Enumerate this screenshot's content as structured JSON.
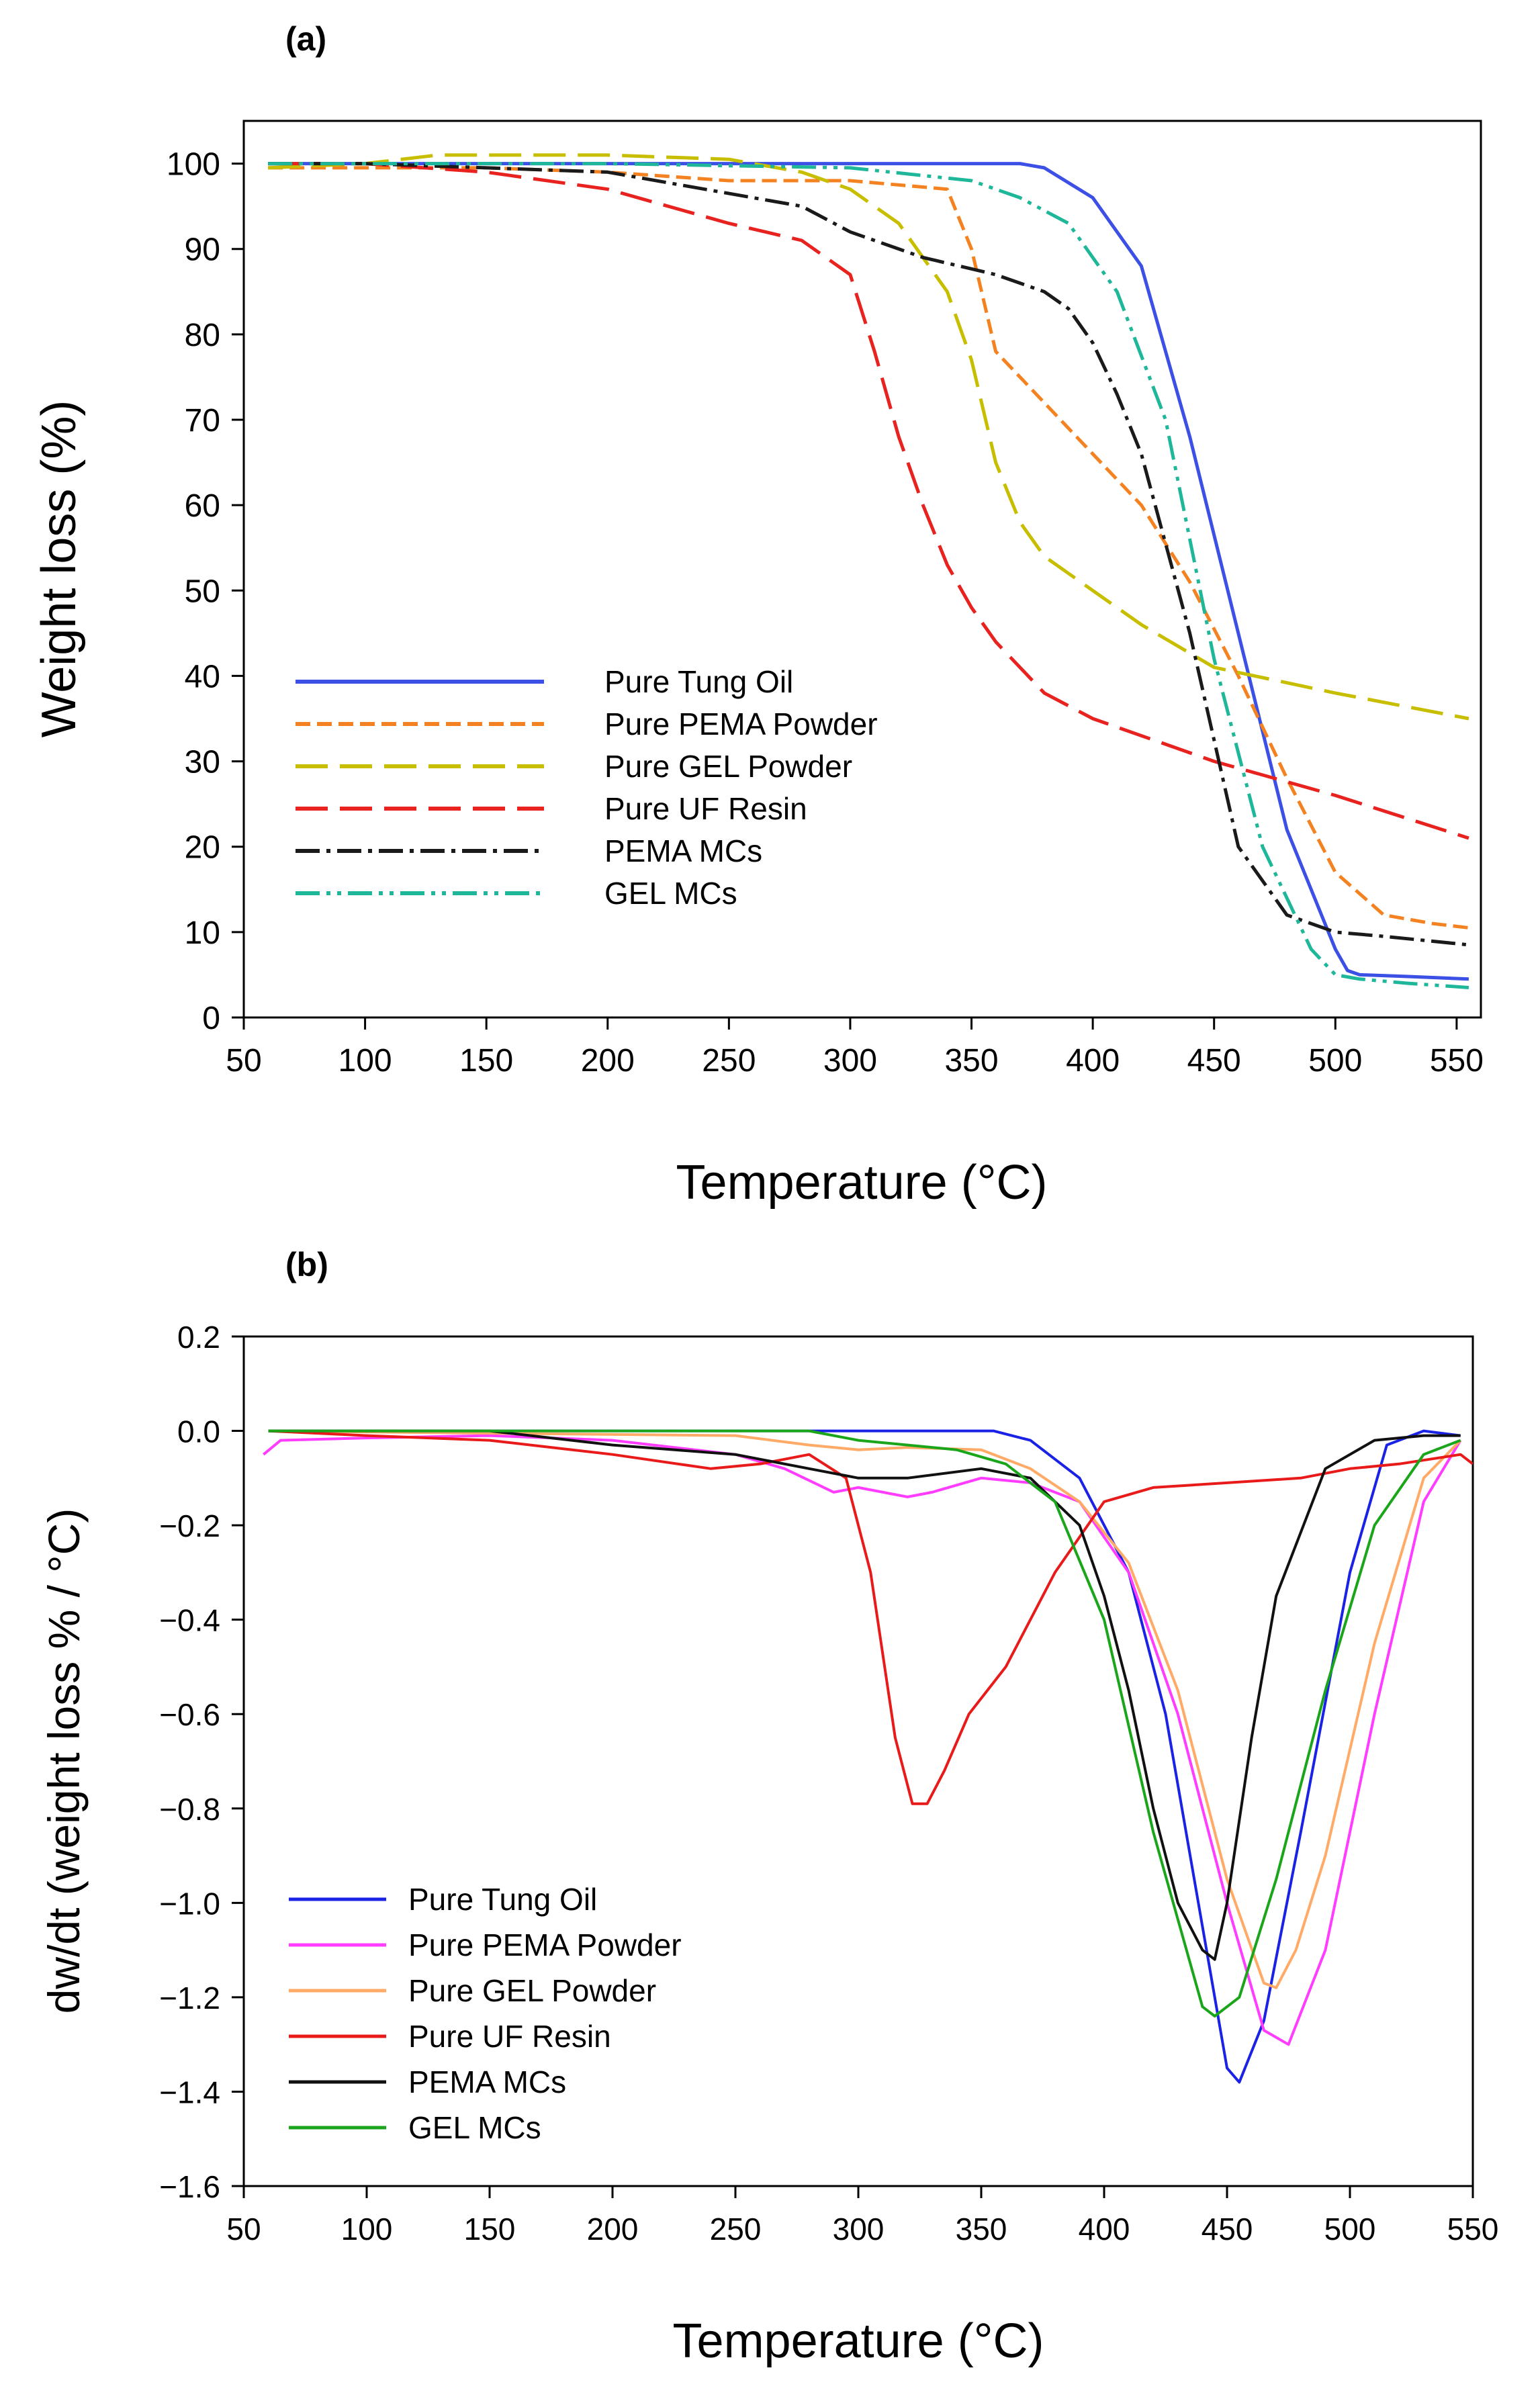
{
  "chart_data": [
    {
      "panel": "(a)",
      "type": "line",
      "title": "",
      "xlabel": "Temperature (°C)",
      "ylabel": "Weight loss (%)",
      "xlim": [
        50,
        560
      ],
      "ylim": [
        0,
        105
      ],
      "xticks": [
        50,
        100,
        150,
        200,
        250,
        300,
        350,
        400,
        450,
        500,
        550
      ],
      "yticks": [
        0,
        10,
        20,
        30,
        40,
        50,
        60,
        70,
        80,
        90,
        100
      ],
      "legend_position": "lower-left",
      "grid": false,
      "series": [
        {
          "name": "Pure Tung Oil",
          "color": "#3c50e6",
          "dash": "solid",
          "x": [
            60,
            100,
            200,
            300,
            370,
            380,
            400,
            420,
            440,
            460,
            480,
            500,
            505,
            510,
            530,
            555
          ],
          "y": [
            100,
            100,
            100,
            100,
            100,
            99.5,
            96,
            88,
            68,
            45,
            22,
            8,
            5.5,
            5,
            4.8,
            4.5
          ]
        },
        {
          "name": "Pure PEMA Powder",
          "color": "#f58220",
          "dash": "short",
          "x": [
            60,
            100,
            150,
            200,
            250,
            300,
            340,
            350,
            360,
            380,
            400,
            420,
            440,
            460,
            480,
            500,
            520,
            540,
            555
          ],
          "y": [
            99.5,
            99.5,
            99.5,
            99,
            98,
            98,
            97,
            90,
            78,
            72,
            66,
            60,
            51,
            40,
            28,
            17,
            12,
            11,
            10.5
          ]
        },
        {
          "name": "Pure GEL Powder",
          "color": "#c8be00",
          "dash": "long",
          "x": [
            60,
            100,
            130,
            200,
            250,
            280,
            300,
            320,
            340,
            350,
            360,
            370,
            380,
            400,
            420,
            450,
            500,
            555
          ],
          "y": [
            99.5,
            100,
            101,
            101,
            100.5,
            99,
            97,
            93,
            85,
            77,
            65,
            58,
            54,
            50,
            46,
            41,
            38,
            35
          ]
        },
        {
          "name": "Pure UF Resin",
          "color": "#e8221e",
          "dash": "long",
          "x": [
            60,
            100,
            150,
            200,
            250,
            280,
            300,
            310,
            320,
            330,
            340,
            350,
            360,
            380,
            400,
            450,
            500,
            555
          ],
          "y": [
            100,
            100,
            99,
            97,
            93,
            91,
            87,
            78,
            68,
            60,
            53,
            48,
            44,
            38,
            35,
            30,
            26,
            21
          ]
        },
        {
          "name": "PEMA MCs",
          "color": "#1a1a1a",
          "dash": "dashdot",
          "x": [
            60,
            100,
            150,
            200,
            250,
            280,
            300,
            330,
            360,
            380,
            390,
            400,
            410,
            420,
            440,
            460,
            480,
            500,
            520,
            555
          ],
          "y": [
            100,
            100,
            99.5,
            99,
            96.5,
            95,
            92,
            89,
            87,
            85,
            83,
            79,
            73,
            66,
            45,
            20,
            12,
            10,
            9.5,
            8.5
          ]
        },
        {
          "name": "GEL MCs",
          "color": "#1fb79a",
          "dash": "dashdotdot",
          "x": [
            60,
            100,
            200,
            300,
            350,
            370,
            390,
            410,
            430,
            450,
            470,
            490,
            500,
            510,
            530,
            555
          ],
          "y": [
            100,
            100,
            100,
            99.5,
            98,
            96,
            93,
            85,
            70,
            42,
            20,
            8,
            5,
            4.5,
            4,
            3.5
          ]
        }
      ]
    },
    {
      "panel": "(b)",
      "type": "line",
      "title": "",
      "xlabel": "Temperature (°C)",
      "ylabel": "dw/dt (weight loss % / °C)",
      "xlim": [
        50,
        550
      ],
      "ylim": [
        -1.6,
        0.2
      ],
      "xticks": [
        50,
        100,
        150,
        200,
        250,
        300,
        350,
        400,
        450,
        500,
        550
      ],
      "yticks": [
        0.2,
        0.0,
        -0.2,
        -0.4,
        -0.6,
        -0.8,
        -1.0,
        -1.2,
        -1.4,
        -1.6
      ],
      "ytick_labels": [
        "0.2",
        "0.0",
        "−0.2",
        "−0.4",
        "−0.6",
        "−0.8",
        "−1.0",
        "−1.2",
        "−1.4",
        "−1.6"
      ],
      "legend_position": "lower-left",
      "grid": false,
      "series": [
        {
          "name": "Pure Tung Oil",
          "color": "#1a22e6",
          "x": [
            60,
            200,
            300,
            355,
            370,
            390,
            410,
            425,
            440,
            450,
            455,
            465,
            480,
            500,
            515,
            530,
            545
          ],
          "y": [
            0,
            0,
            0,
            0,
            -0.02,
            -0.1,
            -0.3,
            -0.6,
            -1.05,
            -1.35,
            -1.38,
            -1.25,
            -0.85,
            -0.3,
            -0.03,
            0,
            -0.01
          ]
        },
        {
          "name": "Pure PEMA Powder",
          "color": "#ff3cff",
          "x": [
            58,
            65,
            100,
            150,
            200,
            250,
            270,
            290,
            300,
            320,
            330,
            350,
            370,
            390,
            410,
            430,
            450,
            465,
            475,
            490,
            510,
            530,
            545
          ],
          "y": [
            -0.05,
            -0.02,
            -0.015,
            -0.01,
            -0.02,
            -0.05,
            -0.08,
            -0.13,
            -0.12,
            -0.14,
            -0.13,
            -0.1,
            -0.11,
            -0.15,
            -0.3,
            -0.6,
            -1.0,
            -1.27,
            -1.3,
            -1.1,
            -0.6,
            -0.15,
            -0.02
          ]
        },
        {
          "name": "Pure GEL Powder",
          "color": "#ffaa66",
          "x": [
            60,
            150,
            250,
            280,
            300,
            320,
            350,
            370,
            390,
            410,
            430,
            450,
            465,
            470,
            478,
            490,
            510,
            530,
            545
          ],
          "y": [
            0,
            -0.005,
            -0.01,
            -0.03,
            -0.04,
            -0.035,
            -0.04,
            -0.08,
            -0.15,
            -0.28,
            -0.55,
            -0.95,
            -1.17,
            -1.18,
            -1.1,
            -0.9,
            -0.45,
            -0.1,
            -0.02
          ]
        },
        {
          "name": "Pure UF Resin",
          "color": "#e81a1a",
          "x": [
            60,
            100,
            150,
            200,
            240,
            260,
            280,
            295,
            305,
            315,
            322,
            328,
            335,
            345,
            360,
            380,
            400,
            420,
            450,
            480,
            500,
            520,
            545,
            550
          ],
          "y": [
            0,
            -0.01,
            -0.02,
            -0.05,
            -0.08,
            -0.07,
            -0.05,
            -0.1,
            -0.3,
            -0.65,
            -0.79,
            -0.79,
            -0.72,
            -0.6,
            -0.5,
            -0.3,
            -0.15,
            -0.12,
            -0.11,
            -0.1,
            -0.08,
            -0.07,
            -0.05,
            -0.07
          ]
        },
        {
          "name": "PEMA MCs",
          "color": "#111111",
          "x": [
            60,
            150,
            200,
            250,
            280,
            300,
            320,
            350,
            370,
            390,
            400,
            410,
            420,
            430,
            440,
            445,
            450,
            460,
            470,
            490,
            510,
            530,
            545
          ],
          "y": [
            0,
            0,
            -0.03,
            -0.05,
            -0.08,
            -0.1,
            -0.1,
            -0.08,
            -0.1,
            -0.2,
            -0.35,
            -0.55,
            -0.8,
            -1.0,
            -1.1,
            -1.12,
            -1.0,
            -0.65,
            -0.35,
            -0.08,
            -0.02,
            -0.01,
            -0.01
          ]
        },
        {
          "name": "GEL MCs",
          "color": "#1aa51a",
          "x": [
            60,
            200,
            280,
            300,
            320,
            340,
            360,
            380,
            400,
            420,
            440,
            445,
            455,
            470,
            490,
            510,
            530,
            545
          ],
          "y": [
            0,
            0,
            0,
            -0.02,
            -0.03,
            -0.04,
            -0.07,
            -0.15,
            -0.4,
            -0.85,
            -1.22,
            -1.24,
            -1.2,
            -0.95,
            -0.55,
            -0.2,
            -0.05,
            -0.02
          ]
        }
      ]
    }
  ]
}
